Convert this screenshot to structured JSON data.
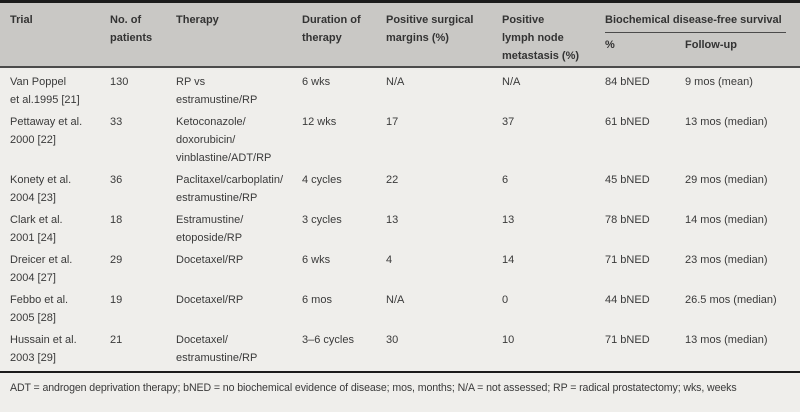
{
  "colors": {
    "header_bg": "#c9c8c5",
    "body_bg": "#efeeeb",
    "rule_dark": "#1b1b1b",
    "rule_mid": "#4b4b4b",
    "text": "#3a3a3a"
  },
  "table": {
    "columns": [
      "Trial",
      "No. of\npatients",
      "Therapy",
      "Duration of\ntherapy",
      "Positive surgical\nmargins (%)",
      "Positive\nlymph node\nmetastasis (%)"
    ],
    "group_header": {
      "label": "Biochemical disease-free survival",
      "sub_columns": [
        "%",
        "Follow-up"
      ]
    },
    "rows": [
      {
        "trial": "Van Poppel\net al.1995 [21]",
        "patients": "130",
        "therapy": "RP vs\nestramustine/RP",
        "duration": "6 wks",
        "margins": "N/A",
        "lymph": "N/A",
        "pct": "84 bNED",
        "followup": "9 mos (mean)"
      },
      {
        "trial": "Pettaway et al.\n2000 [22]",
        "patients": "33",
        "therapy": "Ketoconazole/\ndoxorubicin/\nvinblastine/ADT/RP",
        "duration": "12 wks",
        "margins": "17",
        "lymph": "37",
        "pct": "61 bNED",
        "followup": "13 mos (median)"
      },
      {
        "trial": "Konety et al.\n2004 [23]",
        "patients": "36",
        "therapy": "Paclitaxel/carboplatin/\nestramustine/RP",
        "duration": "4 cycles",
        "margins": "22",
        "lymph": "6",
        "pct": "45 bNED",
        "followup": "29 mos (median)"
      },
      {
        "trial": "Clark et al.\n2001 [24]",
        "patients": "18",
        "therapy": "Estramustine/\netoposide/RP",
        "duration": "3 cycles",
        "margins": "13",
        "lymph": "13",
        "pct": "78 bNED",
        "followup": "14 mos (median)"
      },
      {
        "trial": "Dreicer et al.\n2004 [27]",
        "patients": "29",
        "therapy": "Docetaxel/RP",
        "duration": "6 wks",
        "margins": "4",
        "lymph": "14",
        "pct": "71 bNED",
        "followup": "23 mos (median)"
      },
      {
        "trial": "Febbo et al.\n2005 [28]",
        "patients": "19",
        "therapy": "Docetaxel/RP",
        "duration": "6 mos",
        "margins": "N/A",
        "lymph": "0",
        "pct": "44 bNED",
        "followup": "26.5 mos (median)"
      },
      {
        "trial": "Hussain et al.\n2003 [29]",
        "patients": "21",
        "therapy": "Docetaxel/\nestramustine/RP",
        "duration": "3–6 cycles",
        "margins": "30",
        "lymph": "10",
        "pct": "71 bNED",
        "followup": "13 mos (median)"
      }
    ],
    "footnote": "ADT = androgen deprivation therapy; bNED = no biochemical evidence of disease; mos, months; N/A = not assessed; RP = radical prostatectomy; wks, weeks"
  }
}
